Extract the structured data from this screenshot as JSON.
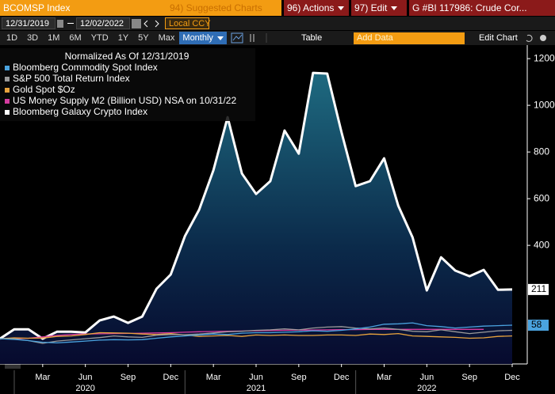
{
  "toolbar": {
    "ticker": "BCOMSP Index",
    "menus": [
      "94) Suggested Charts",
      "96) Actions",
      "97) Edit",
      "G #BI 117986: Crude Cor..."
    ],
    "start_date": "12/31/2019",
    "end_date": "12/02/2022",
    "currency": "Local CCY",
    "periods": [
      "1D",
      "3D",
      "1M",
      "6M",
      "YTD",
      "1Y",
      "5Y",
      "Max"
    ],
    "frequency": "Monthly",
    "table": "Table",
    "add_data": "Add Data",
    "edit_chart": "Edit Chart"
  },
  "chart_data": {
    "type": "line",
    "legend_title": "Normalized As Of 12/31/2019",
    "categories": [
      null,
      null,
      null,
      "Mar",
      null,
      null,
      "Jun",
      null,
      null,
      "Sep",
      null,
      null,
      "Dec",
      null,
      null,
      "Mar",
      null,
      null,
      "Jun",
      null,
      null,
      "Sep",
      null,
      null,
      "Dec",
      null,
      null,
      "Mar",
      null,
      null,
      "Jun",
      null,
      null,
      "Sep",
      null,
      null,
      "Dec"
    ],
    "year_labels": [
      "2020",
      "2021",
      "2022"
    ],
    "series": [
      {
        "name": "Bloomberg Commodity Spot Index",
        "color": "#4aa3df",
        "values": [
          0,
          -3,
          -8,
          -15,
          -18,
          -14,
          -10,
          -6,
          -4,
          -5,
          -4,
          2,
          8,
          12,
          16,
          20,
          18,
          24,
          26,
          26,
          28,
          30,
          34,
          32,
          36,
          42,
          50,
          62,
          64,
          68,
          56,
          52,
          46,
          50,
          54,
          56,
          58
        ]
      },
      {
        "name": "S&P 500 Total Return Index",
        "color": "#9a9a9a",
        "values": [
          0,
          0,
          -8,
          -20,
          -10,
          -5,
          0,
          5,
          12,
          8,
          6,
          15,
          18,
          17,
          20,
          25,
          30,
          32,
          36,
          38,
          42,
          38,
          46,
          50,
          52,
          46,
          42,
          46,
          40,
          32,
          30,
          38,
          30,
          22,
          28,
          34,
          36
        ]
      },
      {
        "name": "Gold Spot $Oz",
        "color": "#e8a33d",
        "values": [
          0,
          4,
          2,
          3,
          10,
          12,
          18,
          26,
          25,
          24,
          20,
          18,
          22,
          16,
          10,
          12,
          14,
          10,
          16,
          14,
          16,
          14,
          14,
          16,
          16,
          14,
          20,
          18,
          22,
          12,
          10,
          8,
          6,
          2,
          4,
          10,
          12
        ]
      },
      {
        "name": "US Money Supply M2 (Billion USD) NSA on 10/31/22",
        "color": "#d63ca0",
        "values": [
          0,
          1,
          2,
          8,
          14,
          18,
          20,
          21,
          22,
          23,
          24,
          25,
          26,
          28,
          30,
          31,
          32,
          33,
          34,
          35,
          36,
          37,
          37,
          38,
          39,
          39,
          40,
          40,
          40,
          40,
          40,
          40,
          40,
          40,
          40,
          null,
          null
        ]
      },
      {
        "name": "Bloomberg Galaxy Crypto Index",
        "color": "#ffffff",
        "values": [
          0,
          40,
          40,
          0,
          30,
          30,
          27,
          78,
          95,
          68,
          95,
          214,
          275,
          440,
          553,
          722,
          949,
          708,
          620,
          675,
          892,
          793,
          1139,
          1136,
          885,
          654,
          675,
          773,
          569,
          434,
          207,
          349,
          292,
          268,
          295,
          210,
          211
        ]
      }
    ],
    "ylim": [
      -108,
      1258
    ],
    "yticks": [
      400,
      600,
      800,
      1000,
      1200
    ],
    "grid": false,
    "last_value_labels": true
  }
}
